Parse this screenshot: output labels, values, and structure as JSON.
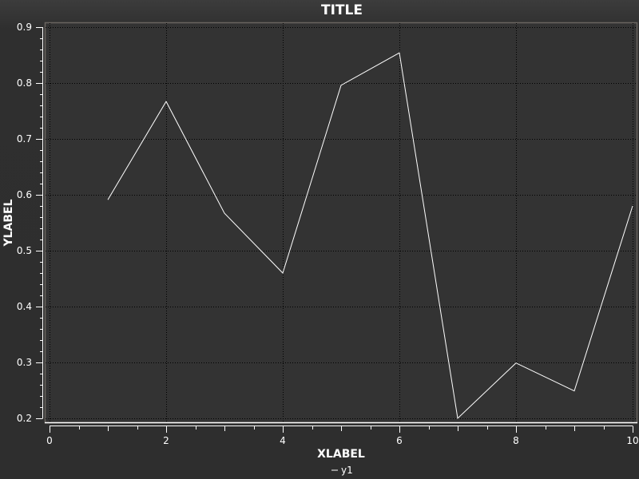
{
  "chart_data": {
    "type": "line",
    "title": "TITLE",
    "xlabel": "XLABEL",
    "ylabel": "YLABEL",
    "xlim": [
      0,
      10
    ],
    "ylim": [
      0.2,
      0.9
    ],
    "xticks": [
      0,
      2,
      4,
      6,
      8,
      10
    ],
    "yticks": [
      0.2,
      0.3,
      0.4,
      0.5,
      0.6,
      0.7,
      0.8,
      0.9
    ],
    "grid": true,
    "legend_position": "bottom",
    "series": [
      {
        "name": "y1",
        "color": "#ffffff",
        "x": [
          1,
          2,
          3,
          4,
          5,
          6,
          7,
          8,
          9,
          10
        ],
        "y": [
          0.591,
          0.767,
          0.567,
          0.46,
          0.796,
          0.854,
          0.2,
          0.299,
          0.249,
          0.58
        ]
      }
    ]
  },
  "colors": {
    "background": "#2e2e2e",
    "canvas": "#333333",
    "grid": "#000000",
    "text": "#ffffff"
  }
}
